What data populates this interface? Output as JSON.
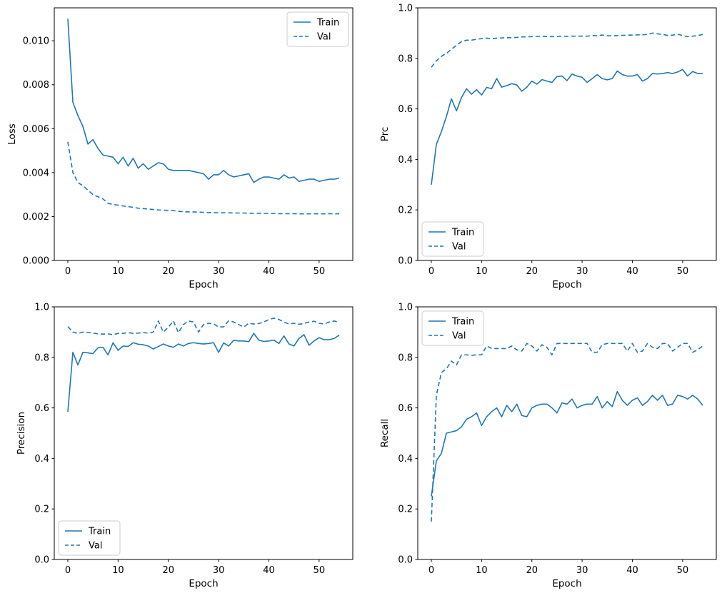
{
  "figure": {
    "kind": "matplotlib-2x2-training-curves",
    "background": "#ffffff"
  },
  "colors": {
    "line": "#1f77b4",
    "spine": "#000000",
    "text": "#000000",
    "legend_border": "#cccccc",
    "legend_bg": "#ffffff"
  },
  "epochs": [
    0,
    1,
    2,
    3,
    4,
    5,
    6,
    7,
    8,
    9,
    10,
    11,
    12,
    13,
    14,
    15,
    16,
    17,
    18,
    19,
    20,
    21,
    22,
    23,
    24,
    25,
    26,
    27,
    28,
    29,
    30,
    31,
    32,
    33,
    34,
    35,
    36,
    37,
    38,
    39,
    40,
    41,
    42,
    43,
    44,
    45,
    46,
    47,
    48,
    49,
    50,
    51,
    52,
    53,
    54
  ],
  "chart_data": [
    {
      "id": "loss",
      "type": "line",
      "title": "",
      "xlabel": "Epoch",
      "ylabel": "Loss",
      "xlim": [
        -2.7,
        56.7
      ],
      "ylim": [
        0,
        0.0115
      ],
      "xticks": [
        0,
        10,
        20,
        30,
        40,
        50
      ],
      "yticks": [
        0.0,
        0.002,
        0.004,
        0.006,
        0.008,
        0.01
      ],
      "ytick_labels": [
        "0.000",
        "0.002",
        "0.004",
        "0.006",
        "0.008",
        "0.010"
      ],
      "grid": false,
      "legend_position": "upper-right",
      "legend_labels": [
        "Train",
        "Val"
      ],
      "series": [
        {
          "name": "Train",
          "style": "solid",
          "values": [
            0.011,
            0.0072,
            0.0066,
            0.0061,
            0.0053,
            0.0055,
            0.0051,
            0.0048,
            0.00475,
            0.0047,
            0.0044,
            0.0047,
            0.0043,
            0.00465,
            0.0042,
            0.0044,
            0.00415,
            0.0043,
            0.00445,
            0.0044,
            0.00415,
            0.0041,
            0.0041,
            0.0041,
            0.0041,
            0.00405,
            0.004,
            0.00395,
            0.0037,
            0.0039,
            0.0039,
            0.0041,
            0.0039,
            0.0038,
            0.00385,
            0.0039,
            0.00395,
            0.00355,
            0.0037,
            0.0038,
            0.0038,
            0.00375,
            0.0037,
            0.0039,
            0.00375,
            0.0038,
            0.0036,
            0.00365,
            0.0037,
            0.0037,
            0.0036,
            0.00365,
            0.0037,
            0.0037,
            0.00375
          ]
        },
        {
          "name": "Val",
          "style": "dashed",
          "values": [
            0.0054,
            0.004,
            0.00355,
            0.0034,
            0.0032,
            0.003,
            0.0029,
            0.0028,
            0.0026,
            0.00255,
            0.00252,
            0.00248,
            0.00245,
            0.00242,
            0.00238,
            0.00236,
            0.00234,
            0.00232,
            0.0023,
            0.00229,
            0.00228,
            0.00227,
            0.00224,
            0.00222,
            0.00221,
            0.00221,
            0.0022,
            0.00219,
            0.00218,
            0.00218,
            0.00217,
            0.00217,
            0.00217,
            0.00216,
            0.00216,
            0.00216,
            0.00215,
            0.00215,
            0.00215,
            0.00214,
            0.00214,
            0.00214,
            0.00213,
            0.00213,
            0.00213,
            0.00213,
            0.00212,
            0.00212,
            0.00212,
            0.00213,
            0.00212,
            0.00212,
            0.00213,
            0.00212,
            0.00213
          ]
        }
      ]
    },
    {
      "id": "prc",
      "type": "line",
      "title": "",
      "xlabel": "Epoch",
      "ylabel": "Prc",
      "xlim": [
        -2.7,
        56.7
      ],
      "ylim": [
        0,
        1
      ],
      "xticks": [
        0,
        10,
        20,
        30,
        40,
        50
      ],
      "yticks": [
        0.0,
        0.2,
        0.4,
        0.6,
        0.8,
        1.0
      ],
      "ytick_labels": [
        "0.0",
        "0.2",
        "0.4",
        "0.6",
        "0.8",
        "1.0"
      ],
      "grid": false,
      "legend_position": "lower-left",
      "legend_labels": [
        "Train",
        "Val"
      ],
      "series": [
        {
          "name": "Train",
          "style": "solid",
          "values": [
            0.3,
            0.46,
            0.51,
            0.57,
            0.64,
            0.592,
            0.645,
            0.68,
            0.658,
            0.676,
            0.655,
            0.685,
            0.68,
            0.72,
            0.686,
            0.692,
            0.7,
            0.695,
            0.67,
            0.686,
            0.71,
            0.698,
            0.716,
            0.71,
            0.705,
            0.728,
            0.73,
            0.712,
            0.738,
            0.73,
            0.725,
            0.705,
            0.72,
            0.736,
            0.72,
            0.715,
            0.72,
            0.75,
            0.736,
            0.73,
            0.73,
            0.736,
            0.71,
            0.72,
            0.74,
            0.738,
            0.74,
            0.744,
            0.74,
            0.746,
            0.756,
            0.73,
            0.748,
            0.74,
            0.74
          ]
        },
        {
          "name": "Val",
          "style": "dashed",
          "values": [
            0.765,
            0.79,
            0.808,
            0.82,
            0.836,
            0.852,
            0.866,
            0.872,
            0.872,
            0.876,
            0.878,
            0.88,
            0.878,
            0.88,
            0.881,
            0.882,
            0.882,
            0.883,
            0.885,
            0.885,
            0.886,
            0.887,
            0.887,
            0.886,
            0.886,
            0.886,
            0.888,
            0.887,
            0.888,
            0.888,
            0.888,
            0.888,
            0.89,
            0.89,
            0.892,
            0.89,
            0.889,
            0.89,
            0.891,
            0.892,
            0.892,
            0.893,
            0.893,
            0.895,
            0.9,
            0.897,
            0.895,
            0.891,
            0.892,
            0.896,
            0.89,
            0.886,
            0.888,
            0.89,
            0.895
          ]
        }
      ]
    },
    {
      "id": "precision",
      "type": "line",
      "title": "",
      "xlabel": "Epoch",
      "ylabel": "Precision",
      "xlim": [
        -2.7,
        56.7
      ],
      "ylim": [
        0,
        1
      ],
      "xticks": [
        0,
        10,
        20,
        30,
        40,
        50
      ],
      "yticks": [
        0.0,
        0.2,
        0.4,
        0.6,
        0.8,
        1.0
      ],
      "ytick_labels": [
        "0.0",
        "0.2",
        "0.4",
        "0.6",
        "0.8",
        "1.0"
      ],
      "grid": false,
      "legend_position": "lower-left",
      "legend_labels": [
        "Train",
        "Val"
      ],
      "series": [
        {
          "name": "Train",
          "style": "solid",
          "values": [
            0.585,
            0.82,
            0.77,
            0.82,
            0.818,
            0.815,
            0.838,
            0.84,
            0.81,
            0.858,
            0.828,
            0.845,
            0.843,
            0.858,
            0.852,
            0.85,
            0.845,
            0.833,
            0.843,
            0.853,
            0.845,
            0.84,
            0.853,
            0.845,
            0.855,
            0.858,
            0.855,
            0.853,
            0.855,
            0.858,
            0.82,
            0.857,
            0.845,
            0.868,
            0.865,
            0.865,
            0.862,
            0.895,
            0.868,
            0.863,
            0.865,
            0.868,
            0.855,
            0.885,
            0.853,
            0.845,
            0.875,
            0.89,
            0.848,
            0.865,
            0.878,
            0.87,
            0.87,
            0.875,
            0.888
          ]
        },
        {
          "name": "Val",
          "style": "dashed",
          "values": [
            0.922,
            0.9,
            0.895,
            0.9,
            0.899,
            0.896,
            0.893,
            0.892,
            0.893,
            0.89,
            0.895,
            0.895,
            0.898,
            0.895,
            0.896,
            0.898,
            0.896,
            0.9,
            0.944,
            0.9,
            0.92,
            0.944,
            0.898,
            0.93,
            0.944,
            0.94,
            0.9,
            0.93,
            0.935,
            0.933,
            0.92,
            0.921,
            0.945,
            0.94,
            0.93,
            0.92,
            0.935,
            0.932,
            0.934,
            0.94,
            0.95,
            0.955,
            0.95,
            0.94,
            0.932,
            0.935,
            0.931,
            0.934,
            0.94,
            0.943,
            0.935,
            0.932,
            0.94,
            0.944,
            0.938
          ]
        }
      ]
    },
    {
      "id": "recall",
      "type": "line",
      "title": "",
      "xlabel": "Epoch",
      "ylabel": "Recall",
      "xlim": [
        -2.7,
        56.7
      ],
      "ylim": [
        0,
        1
      ],
      "xticks": [
        0,
        10,
        20,
        30,
        40,
        50
      ],
      "yticks": [
        0.0,
        0.2,
        0.4,
        0.6,
        0.8,
        1.0
      ],
      "ytick_labels": [
        "0.0",
        "0.2",
        "0.4",
        "0.6",
        "0.8",
        "1.0"
      ],
      "grid": false,
      "legend_position": "upper-left",
      "legend_labels": [
        "Train",
        "Val"
      ],
      "series": [
        {
          "name": "Train",
          "style": "solid",
          "values": [
            0.25,
            0.39,
            0.42,
            0.5,
            0.505,
            0.51,
            0.525,
            0.555,
            0.565,
            0.58,
            0.53,
            0.565,
            0.585,
            0.6,
            0.565,
            0.61,
            0.585,
            0.615,
            0.57,
            0.565,
            0.6,
            0.61,
            0.615,
            0.615,
            0.6,
            0.58,
            0.62,
            0.615,
            0.635,
            0.6,
            0.61,
            0.615,
            0.615,
            0.645,
            0.6,
            0.625,
            0.605,
            0.665,
            0.63,
            0.61,
            0.63,
            0.64,
            0.61,
            0.625,
            0.65,
            0.63,
            0.65,
            0.61,
            0.615,
            0.65,
            0.645,
            0.635,
            0.65,
            0.635,
            0.61
          ]
        },
        {
          "name": "Val",
          "style": "dashed",
          "values": [
            0.15,
            0.65,
            0.74,
            0.755,
            0.785,
            0.77,
            0.81,
            0.81,
            0.808,
            0.81,
            0.81,
            0.845,
            0.835,
            0.835,
            0.835,
            0.835,
            0.845,
            0.83,
            0.825,
            0.855,
            0.845,
            0.825,
            0.85,
            0.84,
            0.81,
            0.855,
            0.855,
            0.855,
            0.855,
            0.855,
            0.855,
            0.855,
            0.82,
            0.82,
            0.85,
            0.855,
            0.855,
            0.855,
            0.855,
            0.825,
            0.855,
            0.82,
            0.825,
            0.855,
            0.84,
            0.835,
            0.855,
            0.855,
            0.825,
            0.84,
            0.855,
            0.855,
            0.82,
            0.83,
            0.845
          ]
        }
      ]
    }
  ]
}
